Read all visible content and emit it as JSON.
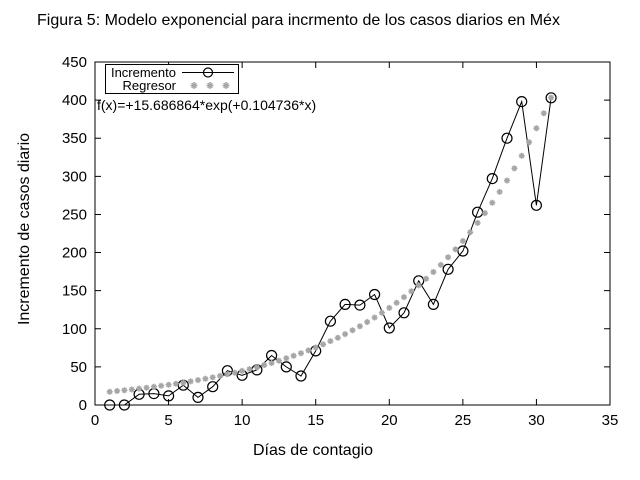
{
  "title": "Figura 5: Modelo exponencial para incrmento de los casos diarios en Méx",
  "axes": {
    "x_label": "Días de contagio",
    "y_label": "Incremento de casos diario"
  },
  "annotation": {
    "formula": "f(x)=+15.686864*exp(+0.104736*x)"
  },
  "legend": {
    "items": [
      {
        "label": "Incremento"
      },
      {
        "label": "Regresor"
      }
    ]
  },
  "chart_data": {
    "type": "line",
    "title": "Figura 5: Modelo exponencial para incrmento de los casos diarios en Méx",
    "xlabel": "Días de contagio",
    "ylabel": "Incremento de casos diario",
    "xlim": [
      0,
      35
    ],
    "ylim": [
      0,
      450
    ],
    "x_ticks": [
      0,
      5,
      10,
      15,
      20,
      25,
      30,
      35
    ],
    "y_ticks": [
      0,
      50,
      100,
      150,
      200,
      250,
      300,
      350,
      400,
      450
    ],
    "grid": false,
    "legend_position": "top-left",
    "series": [
      {
        "name": "Incremento",
        "style": "line-with-open-circles",
        "color": "#000000",
        "x": [
          1,
          2,
          3,
          4,
          5,
          6,
          7,
          8,
          9,
          10,
          11,
          12,
          13,
          14,
          15,
          16,
          17,
          18,
          19,
          20,
          21,
          22,
          23,
          24,
          25,
          26,
          27,
          28,
          29,
          30,
          31
        ],
        "y": [
          0,
          0,
          14,
          15,
          12,
          26,
          10,
          24,
          45,
          39,
          46,
          65,
          50,
          38,
          71,
          110,
          132,
          131,
          145,
          101,
          121,
          163,
          132,
          178,
          202,
          253,
          297,
          350,
          398,
          262,
          403
        ]
      },
      {
        "name": "Regresor",
        "style": "dots",
        "color": "#a6a6a6",
        "formula": "f(x)=+15.686864*exp(+0.104736*x)",
        "a": 15.686864,
        "b": 0.104736,
        "x_start": 1,
        "x_end": 31,
        "x_step": 0.5
      }
    ]
  }
}
